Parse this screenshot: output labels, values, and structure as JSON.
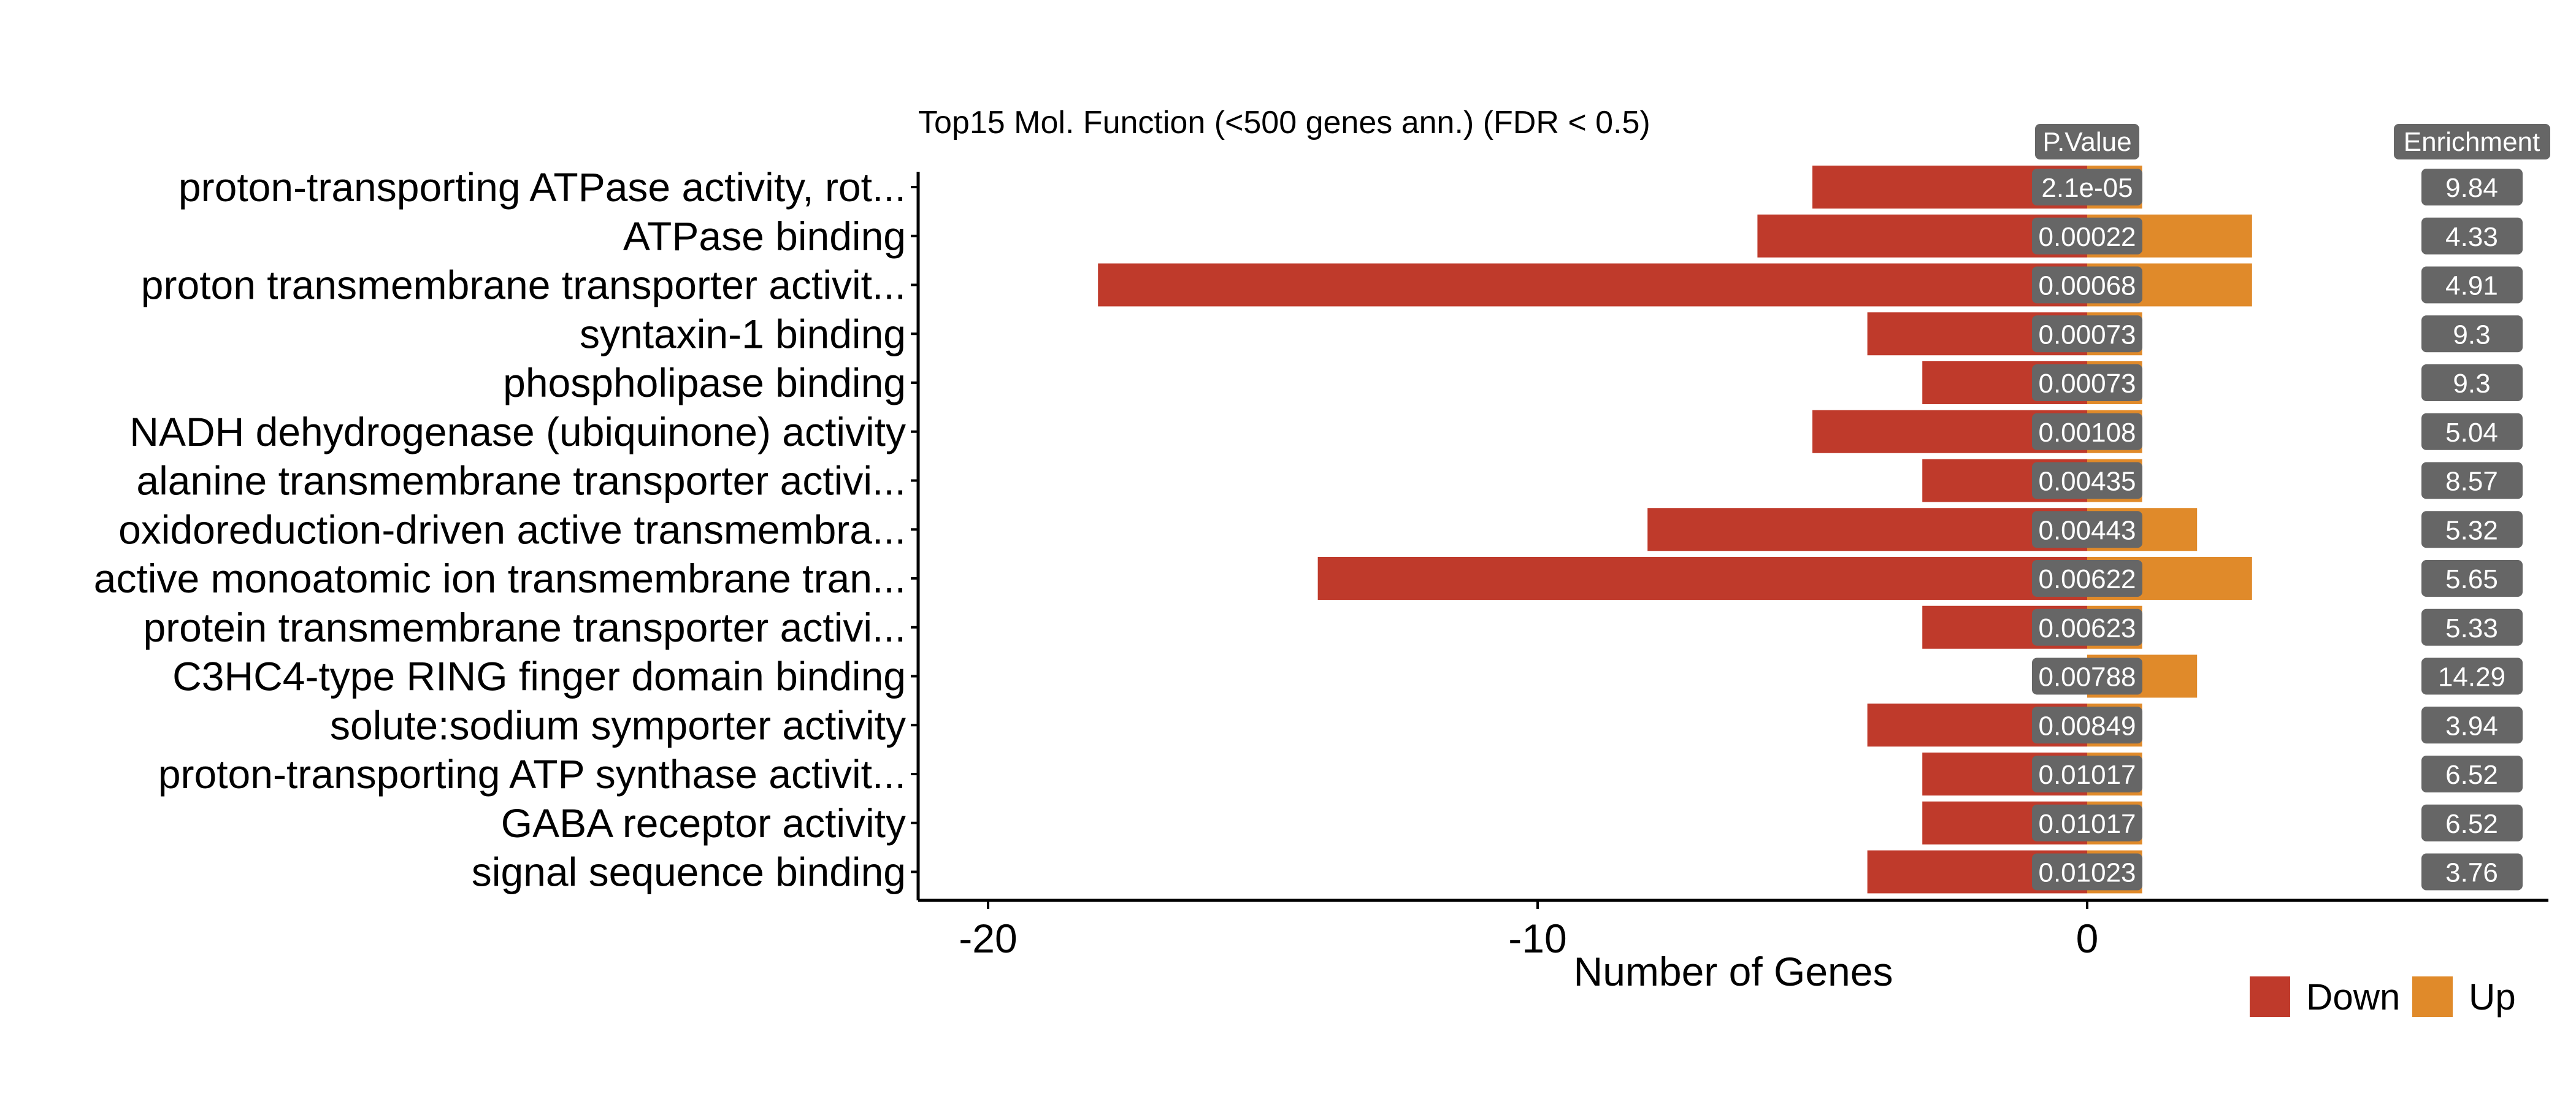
{
  "chart_data": {
    "type": "bar",
    "title": "Top15 Mol. Function (<500 genes ann.) (FDR < 0.5)",
    "xlabel": "Number of Genes",
    "ylabel": "",
    "xlim": [
      -21.3,
      8.3
    ],
    "xticks": [
      -20,
      -10,
      0
    ],
    "grid": false,
    "legend_position": "bottom-right",
    "pvalue_header": "P.Value",
    "enrichment_header": "Enrichment",
    "categories": [
      "proton-transporting ATPase activity, rot...",
      "ATPase binding",
      "proton transmembrane transporter activit...",
      "syntaxin-1 binding",
      "phospholipase binding",
      "NADH dehydrogenase (ubiquinone) activity",
      "alanine transmembrane transporter activi...",
      "oxidoreduction-driven active transmembra...",
      "active monoatomic ion transmembrane tran...",
      "protein transmembrane transporter activi...",
      "C3HC4-type RING finger domain binding",
      "solute:sodium symporter activity",
      "proton-transporting ATP synthase activit...",
      "GABA receptor activity",
      "signal sequence binding"
    ],
    "series": [
      {
        "name": "Down",
        "color": "#BF3A2B",
        "values": [
          -5,
          -6,
          -18,
          -4,
          -3,
          -5,
          -3,
          -8,
          -14,
          -3,
          0,
          -4,
          -3,
          -3,
          -4
        ]
      },
      {
        "name": "Up",
        "color": "#E08A2A",
        "values": [
          1,
          3,
          3,
          1,
          1,
          1,
          1,
          2,
          3,
          1,
          2,
          1,
          1,
          1,
          1
        ]
      }
    ],
    "pvalues": [
      "2.1e-05",
      "0.00022",
      "0.00068",
      "0.00073",
      "0.00073",
      "0.00108",
      "0.00435",
      "0.00443",
      "0.00622",
      "0.00623",
      "0.00788",
      "0.00849",
      "0.01017",
      "0.01017",
      "0.01023"
    ],
    "enrichment": [
      "9.84",
      "4.33",
      "4.91",
      "9.3",
      "9.3",
      "5.04",
      "8.57",
      "5.32",
      "5.65",
      "5.33",
      "14.29",
      "3.94",
      "6.52",
      "6.52",
      "3.76"
    ],
    "label_box_color": "#666666"
  }
}
